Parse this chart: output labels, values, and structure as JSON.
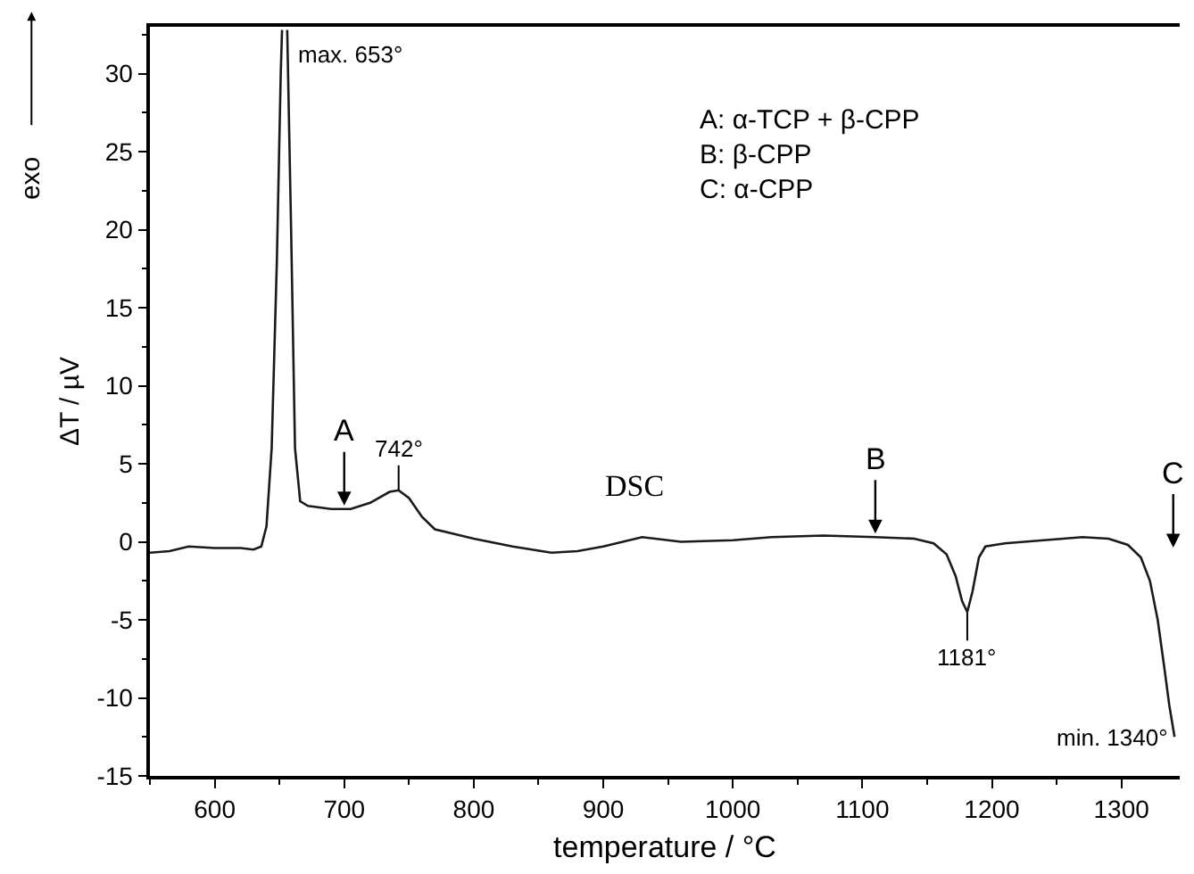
{
  "chart_data": {
    "type": "line",
    "xlabel": "temperature / °C",
    "ylabel": "ΔT / µV",
    "x": [
      550,
      565,
      580,
      600,
      620,
      630,
      636,
      640,
      644,
      648,
      651,
      652,
      653,
      656,
      659,
      662,
      666,
      672,
      690,
      705,
      720,
      735,
      742,
      750,
      760,
      770,
      785,
      800,
      830,
      860,
      880,
      900,
      930,
      960,
      1000,
      1030,
      1070,
      1110,
      1140,
      1155,
      1165,
      1172,
      1177,
      1181,
      1185,
      1190,
      1195,
      1210,
      1240,
      1270,
      1290,
      1305,
      1315,
      1322,
      1328,
      1333,
      1337,
      1341
    ],
    "values": [
      -0.7,
      -0.6,
      -0.3,
      -0.4,
      -0.4,
      -0.5,
      -0.3,
      1,
      6,
      18,
      30,
      32.8,
      null,
      32.8,
      20,
      6,
      2.6,
      2.3,
      2.1,
      2.1,
      2.5,
      3.2,
      3.3,
      2.8,
      1.6,
      0.8,
      0.5,
      0.2,
      -0.3,
      -0.7,
      -0.6,
      -0.3,
      0.3,
      0,
      0.1,
      0.3,
      0.4,
      0.3,
      0.2,
      -0.1,
      -0.8,
      -2.2,
      -3.8,
      -4.5,
      -3.2,
      -1,
      -0.3,
      -0.1,
      0.1,
      0.3,
      0.2,
      -0.2,
      -1,
      -2.5,
      -5,
      -8,
      -10.5,
      -12.5
    ],
    "color": "#1a1a1a",
    "xlim": [
      550,
      1345
    ],
    "xticks": [
      600,
      700,
      800,
      900,
      1000,
      1100,
      1200,
      1300
    ],
    "ylim": [
      -15,
      33
    ],
    "yticks": [
      -15,
      -10,
      -5,
      0,
      5,
      10,
      15,
      20,
      25,
      30
    ],
    "annotations": [
      {
        "text": "742°",
        "x": 742,
        "y": 3.3
      },
      {
        "text": "1181°",
        "x": 1181,
        "y": -4.5
      },
      {
        "text": "min. 1340°",
        "x": 1341,
        "y": -12.5
      },
      {
        "text": "A",
        "x": 700,
        "y": 2.1
      },
      {
        "text": "B",
        "x": 1110,
        "y": 0.3
      },
      "A: α-TCP + β-CPP\nB: β-CPP\nC: α-CPP",
      "DSC",
      "exo",
      "C",
      "max. 653°"
    ],
    "marker": "none",
    "line_style": "solid"
  }
}
